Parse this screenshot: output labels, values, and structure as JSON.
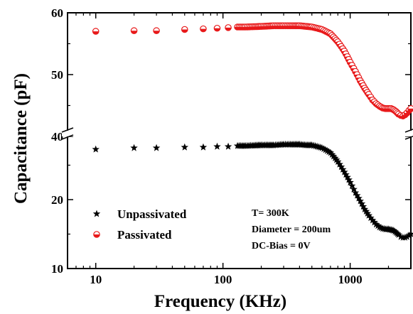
{
  "chart_data": {
    "type": "scatter",
    "xlabel": "Frequency (KHz)",
    "ylabel": "Capacitance (pF)",
    "x_scale": "log",
    "xlim": [
      6,
      3000
    ],
    "x_ticks": [
      {
        "value": 10,
        "label": "10"
      },
      {
        "value": 100,
        "label": "100"
      },
      {
        "value": 1000,
        "label": "1000"
      }
    ],
    "ylim_display": [
      10,
      60
    ],
    "y_ticks": [
      {
        "value": 10,
        "label": "10"
      },
      {
        "value": 20,
        "label": "20"
      },
      {
        "value": 40,
        "label": "40"
      },
      {
        "value": 50,
        "label": "50"
      },
      {
        "value": 60,
        "label": "60"
      }
    ],
    "axis_break": {
      "lower_segment_max": 30,
      "upper_segment_min": 40
    },
    "grid": false,
    "legend_position": "bottom-left",
    "colors": {
      "unpassivated": "#000000",
      "passivated": "#e8191a"
    },
    "series": [
      {
        "name": "Unpassivated",
        "marker": "star",
        "points": [
          [
            10,
            27.3
          ],
          [
            20,
            27.5
          ],
          [
            30,
            27.5
          ],
          [
            50,
            27.6
          ],
          [
            70,
            27.6
          ],
          [
            90,
            27.7
          ],
          [
            110,
            27.7
          ],
          [
            130,
            27.8
          ],
          [
            150,
            27.8
          ],
          [
            200,
            27.9
          ],
          [
            250,
            27.9
          ],
          [
            300,
            28.0
          ],
          [
            350,
            28.0
          ],
          [
            400,
            28.0
          ],
          [
            450,
            27.9
          ],
          [
            500,
            27.9
          ],
          [
            600,
            27.5
          ],
          [
            700,
            26.8
          ],
          [
            800,
            25.5
          ],
          [
            900,
            24.0
          ],
          [
            1000,
            22.5
          ],
          [
            1100,
            21.0
          ],
          [
            1200,
            19.8
          ],
          [
            1300,
            18.6
          ],
          [
            1400,
            17.7
          ],
          [
            1500,
            17.0
          ],
          [
            1600,
            16.4
          ],
          [
            1700,
            16.0
          ],
          [
            1800,
            15.8
          ],
          [
            1900,
            15.7
          ],
          [
            2000,
            15.7
          ],
          [
            2100,
            15.6
          ],
          [
            2200,
            15.5
          ],
          [
            2300,
            15.2
          ],
          [
            2400,
            14.9
          ],
          [
            2500,
            14.6
          ],
          [
            2600,
            14.5
          ],
          [
            2700,
            14.5
          ],
          [
            2800,
            14.6
          ],
          [
            2900,
            14.8
          ],
          [
            3000,
            15.0
          ]
        ]
      },
      {
        "name": "Passivated",
        "marker": "half-filled-circle",
        "points": [
          [
            10,
            57.0
          ],
          [
            20,
            57.1
          ],
          [
            30,
            57.1
          ],
          [
            50,
            57.3
          ],
          [
            70,
            57.4
          ],
          [
            90,
            57.5
          ],
          [
            110,
            57.6
          ],
          [
            130,
            57.7
          ],
          [
            150,
            57.7
          ],
          [
            200,
            57.8
          ],
          [
            250,
            57.9
          ],
          [
            300,
            57.9
          ],
          [
            350,
            57.9
          ],
          [
            400,
            57.9
          ],
          [
            450,
            57.8
          ],
          [
            500,
            57.7
          ],
          [
            600,
            57.3
          ],
          [
            700,
            56.6
          ],
          [
            800,
            55.3
          ],
          [
            900,
            53.8
          ],
          [
            1000,
            52.0
          ],
          [
            1100,
            50.5
          ],
          [
            1200,
            49.0
          ],
          [
            1300,
            47.8
          ],
          [
            1400,
            46.8
          ],
          [
            1500,
            45.9
          ],
          [
            1600,
            45.3
          ],
          [
            1700,
            44.9
          ],
          [
            1800,
            44.6
          ],
          [
            1900,
            44.5
          ],
          [
            2000,
            44.5
          ],
          [
            2100,
            44.5
          ],
          [
            2200,
            44.3
          ],
          [
            2300,
            44.0
          ],
          [
            2400,
            43.6
          ],
          [
            2500,
            43.4
          ],
          [
            2600,
            43.3
          ],
          [
            2700,
            43.5
          ],
          [
            2800,
            43.8
          ],
          [
            2900,
            44.2
          ],
          [
            3000,
            44.5
          ]
        ]
      }
    ],
    "annotations": [
      "T= 300K",
      "Diameter = 200um",
      "DC-Bias = 0V"
    ]
  }
}
